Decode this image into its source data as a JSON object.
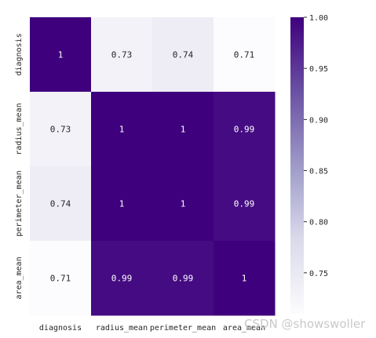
{
  "chart_data": {
    "type": "heatmap",
    "title": "",
    "xlabel": "",
    "ylabel": "",
    "x_labels": [
      "diagnosis",
      "radius_mean",
      "perimeter_mean",
      "area_mean"
    ],
    "y_labels": [
      "diagnosis",
      "radius_mean",
      "perimeter_mean",
      "area_mean"
    ],
    "values": [
      [
        1,
        0.73,
        0.74,
        0.71
      ],
      [
        0.73,
        1,
        1,
        0.99
      ],
      [
        0.74,
        1,
        1,
        0.99
      ],
      [
        0.71,
        0.99,
        0.99,
        1
      ]
    ],
    "annotations": [
      [
        "1",
        "0.73",
        "0.74",
        "0.71"
      ],
      [
        "0.73",
        "1",
        "1",
        "0.99"
      ],
      [
        "0.74",
        "1",
        "1",
        "0.99"
      ],
      [
        "0.71",
        "0.99",
        "0.99",
        "1"
      ]
    ],
    "colormap": "Purples",
    "vmin": 0.71,
    "vmax": 1.0,
    "colorbar_ticks": [
      1.0,
      0.95,
      0.9,
      0.85,
      0.8,
      0.75
    ],
    "colorbar_tick_labels": [
      "1.00",
      "0.95",
      "0.90",
      "0.85",
      "0.80",
      "0.75"
    ],
    "grid": false,
    "legend": "colorbar-right",
    "colors": {
      "low": "#fcfbfd",
      "high": "#3f007d"
    }
  },
  "watermark": "CSDN @showswoller"
}
